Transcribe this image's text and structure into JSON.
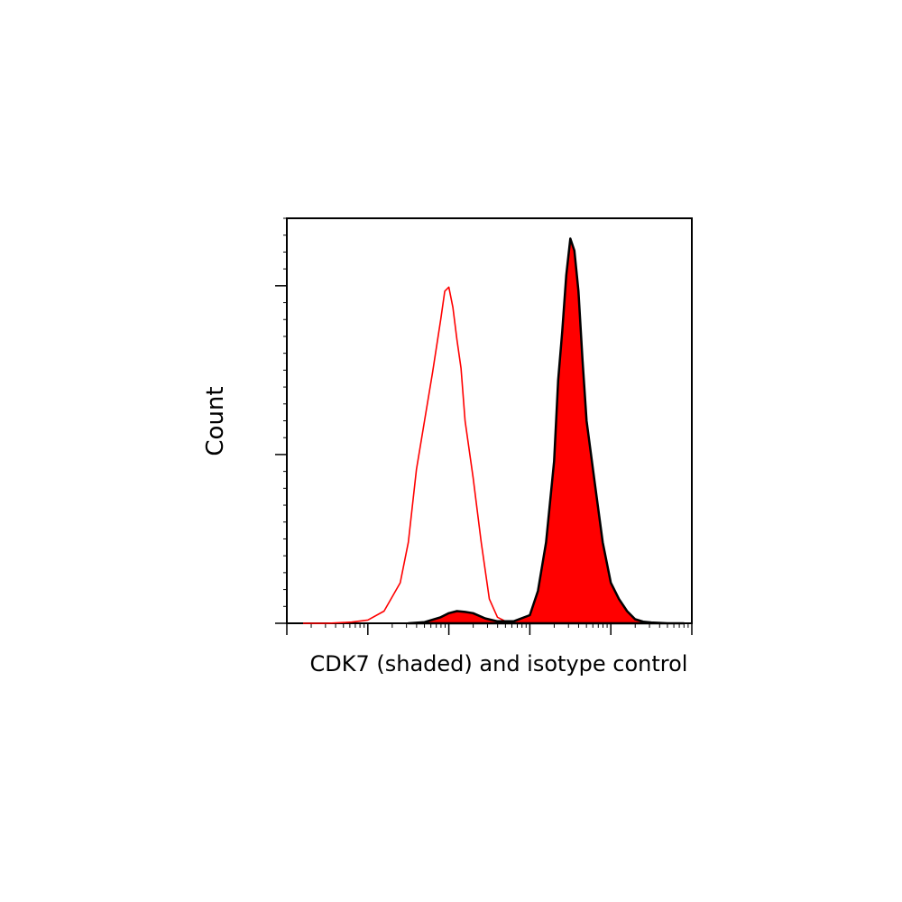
{
  "chart_data": {
    "type": "area",
    "title": "",
    "xlabel": "CDK7 (shaded) and isotype control",
    "ylabel": "Count",
    "x_scale": "log",
    "xlim": [
      0,
      5
    ],
    "ylim": [
      0,
      1
    ],
    "grid": false,
    "legend": "none",
    "series": [
      {
        "style": "outline",
        "color": "#ff0000",
        "x": [
          0.2,
          0.5,
          0.8,
          1.0,
          1.2,
          1.4,
          1.5,
          1.6,
          1.8,
          1.9,
          1.95,
          2.0,
          2.05,
          2.1,
          2.15,
          2.2,
          2.3,
          2.4,
          2.5,
          2.6,
          2.7,
          2.8,
          2.9,
          3.0,
          3.2,
          3.4
        ],
        "y": [
          0.0,
          0.0,
          0.003,
          0.008,
          0.03,
          0.1,
          0.2,
          0.38,
          0.62,
          0.75,
          0.82,
          0.83,
          0.78,
          0.7,
          0.63,
          0.5,
          0.36,
          0.2,
          0.06,
          0.015,
          0.005,
          0.002,
          0.001,
          0.0,
          0.0,
          0.0
        ]
      },
      {
        "style": "filled",
        "color": "#ff0000",
        "outline": "#000000",
        "x": [
          1.5,
          1.7,
          1.9,
          2.0,
          2.1,
          2.2,
          2.3,
          2.45,
          2.6,
          2.8,
          3.0,
          3.1,
          3.2,
          3.3,
          3.35,
          3.4,
          3.45,
          3.5,
          3.55,
          3.6,
          3.65,
          3.7,
          3.8,
          3.9,
          4.0,
          4.1,
          4.2,
          4.3,
          4.4,
          4.5,
          4.7,
          4.9
        ],
        "y": [
          0.0,
          0.003,
          0.015,
          0.025,
          0.03,
          0.028,
          0.025,
          0.012,
          0.005,
          0.005,
          0.02,
          0.08,
          0.2,
          0.4,
          0.6,
          0.72,
          0.86,
          0.95,
          0.92,
          0.82,
          0.65,
          0.5,
          0.35,
          0.2,
          0.1,
          0.06,
          0.03,
          0.01,
          0.004,
          0.002,
          0.0,
          0.0
        ]
      }
    ]
  }
}
